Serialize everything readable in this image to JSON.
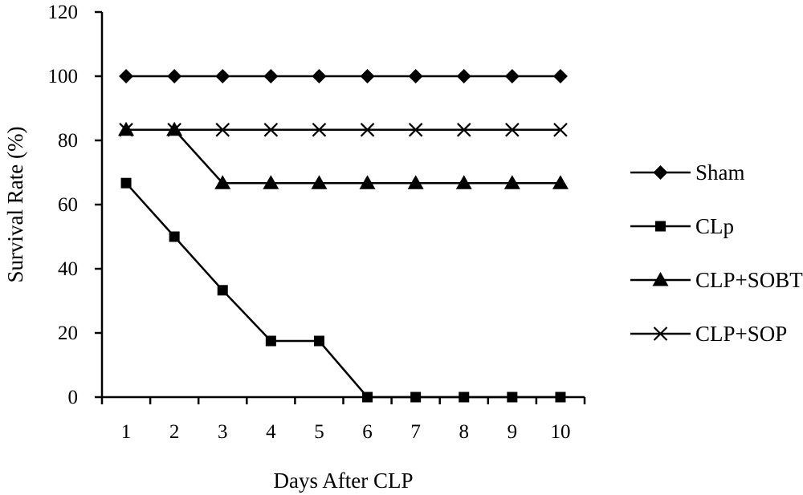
{
  "chart_data": {
    "type": "line",
    "title": "",
    "xlabel": "Days After CLP",
    "ylabel": "Survival Rate (%)",
    "x": [
      1,
      2,
      3,
      4,
      5,
      6,
      7,
      8,
      9,
      10
    ],
    "x_tick_labels": [
      "1",
      "2",
      "3",
      "4",
      "5",
      "6",
      "7",
      "8",
      "9",
      "10"
    ],
    "y_ticks": [
      0,
      20,
      40,
      60,
      80,
      100,
      120
    ],
    "y_tick_labels": [
      "0",
      "20",
      "40",
      "60",
      "80",
      "100",
      "120"
    ],
    "ylim": [
      0,
      120
    ],
    "xlim": [
      0.5,
      10.5
    ],
    "grid": false,
    "legend_position": "right",
    "series": [
      {
        "name": "Sham",
        "marker": "diamond",
        "color": "#000000",
        "values": [
          100,
          100,
          100,
          100,
          100,
          100,
          100,
          100,
          100,
          100
        ]
      },
      {
        "name": "CLp",
        "marker": "square",
        "color": "#000000",
        "values": [
          66.7,
          50,
          33.3,
          17.5,
          17.5,
          0,
          0,
          0,
          0,
          0
        ]
      },
      {
        "name": "CLP+SOBT",
        "marker": "triangle",
        "color": "#000000",
        "values": [
          83.3,
          83.3,
          66.7,
          66.7,
          66.7,
          66.7,
          66.7,
          66.7,
          66.7,
          66.7
        ]
      },
      {
        "name": "CLP+SOP",
        "marker": "x",
        "color": "#000000",
        "values": [
          83.3,
          83.3,
          83.3,
          83.3,
          83.3,
          83.3,
          83.3,
          83.3,
          83.3,
          83.3
        ]
      }
    ]
  }
}
